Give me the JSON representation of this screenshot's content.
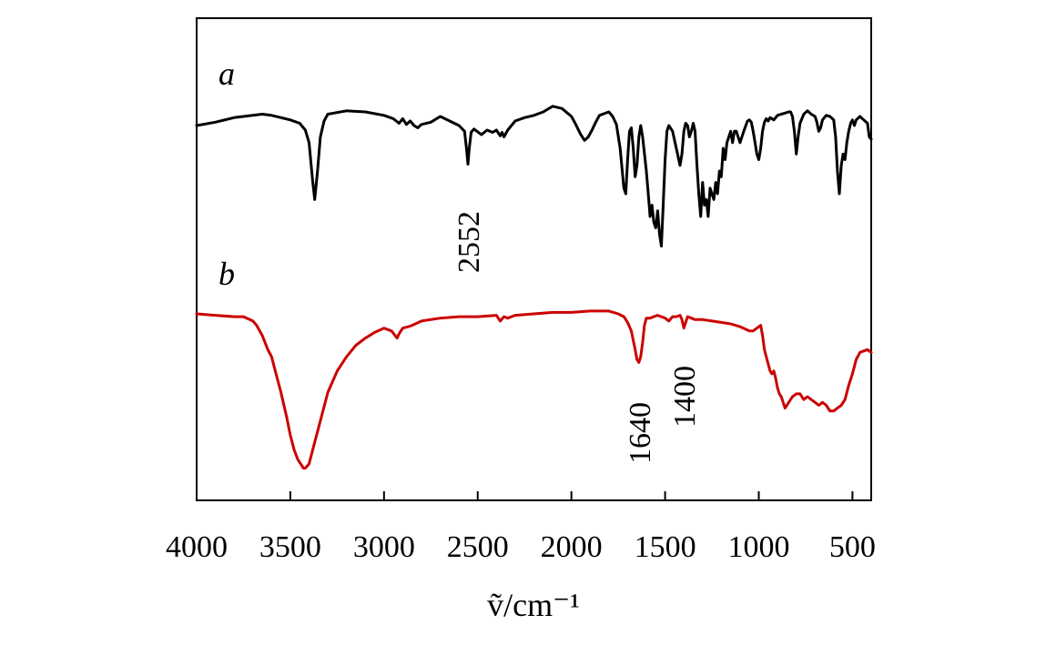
{
  "chart_data": {
    "type": "line",
    "title": "",
    "xlabel": "ṽ/cm⁻¹",
    "ylabel": "",
    "xlim": [
      4000,
      400
    ],
    "x_reversed": true,
    "y_tick_labels": false,
    "xticks": [
      4000,
      3500,
      3000,
      2500,
      2000,
      1500,
      1000,
      500
    ],
    "grid": false,
    "legend": "none",
    "series": [
      {
        "name": "a",
        "color": "#000000",
        "x": [
          4000,
          3900,
          3800,
          3700,
          3650,
          3600,
          3500,
          3450,
          3420,
          3400,
          3380,
          3370,
          3355,
          3340,
          3320,
          3300,
          3200,
          3100,
          3000,
          2950,
          2920,
          2900,
          2880,
          2860,
          2840,
          2820,
          2800,
          2750,
          2700,
          2650,
          2600,
          2570,
          2560,
          2552,
          2545,
          2535,
          2520,
          2480,
          2450,
          2420,
          2400,
          2380,
          2370,
          2360,
          2340,
          2300,
          2250,
          2200,
          2150,
          2130,
          2100,
          2050,
          2000,
          1980,
          1950,
          1930,
          1910,
          1890,
          1870,
          1850,
          1800,
          1780,
          1760,
          1740,
          1720,
          1710,
          1700,
          1690,
          1680,
          1670,
          1660,
          1650,
          1640,
          1630,
          1620,
          1600,
          1590,
          1580,
          1570,
          1560,
          1550,
          1540,
          1530,
          1520,
          1510,
          1500,
          1490,
          1480,
          1460,
          1440,
          1420,
          1410,
          1400,
          1390,
          1380,
          1370,
          1360,
          1350,
          1340,
          1330,
          1320,
          1310,
          1300,
          1290,
          1280,
          1270,
          1260,
          1250,
          1240,
          1230,
          1220,
          1210,
          1200,
          1190,
          1180,
          1170,
          1160,
          1150,
          1140,
          1130,
          1120,
          1100,
          1080,
          1060,
          1050,
          1040,
          1030,
          1020,
          1010,
          1000,
          990,
          980,
          970,
          960,
          950,
          940,
          920,
          900,
          880,
          860,
          840,
          830,
          820,
          810,
          800,
          790,
          780,
          760,
          740,
          720,
          700,
          690,
          680,
          670,
          660,
          640,
          620,
          600,
          590,
          580,
          570,
          560,
          550,
          540,
          530,
          520,
          510,
          500,
          490,
          480,
          460,
          440,
          420,
          410,
          400
        ],
        "y": [
          0.0,
          0.03,
          0.07,
          0.09,
          0.1,
          0.09,
          0.05,
          0.02,
          -0.04,
          -0.15,
          -0.5,
          -0.65,
          -0.4,
          -0.1,
          0.04,
          0.1,
          0.13,
          0.12,
          0.09,
          0.06,
          0.02,
          0.06,
          0.01,
          0.04,
          0.0,
          -0.02,
          0.01,
          0.03,
          0.08,
          0.04,
          0.0,
          -0.05,
          -0.2,
          -0.34,
          -0.2,
          -0.06,
          -0.03,
          -0.08,
          -0.04,
          -0.06,
          -0.04,
          -0.09,
          -0.06,
          -0.1,
          -0.04,
          0.04,
          0.07,
          0.09,
          0.12,
          0.14,
          0.17,
          0.15,
          0.08,
          0.02,
          -0.08,
          -0.13,
          -0.1,
          -0.04,
          0.03,
          0.09,
          0.12,
          0.08,
          0.01,
          -0.2,
          -0.55,
          -0.6,
          -0.3,
          -0.05,
          -0.02,
          -0.2,
          -0.45,
          -0.35,
          -0.1,
          0.0,
          -0.1,
          -0.4,
          -0.6,
          -0.8,
          -0.7,
          -0.85,
          -0.9,
          -0.75,
          -0.95,
          -1.06,
          -0.7,
          -0.3,
          -0.05,
          0.0,
          -0.05,
          -0.2,
          -0.35,
          -0.25,
          -0.05,
          0.02,
          0.0,
          -0.1,
          -0.05,
          0.02,
          -0.05,
          -0.35,
          -0.6,
          -0.8,
          -0.5,
          -0.7,
          -0.65,
          -0.8,
          -0.55,
          -0.6,
          -0.65,
          -0.5,
          -0.6,
          -0.4,
          -0.45,
          -0.2,
          -0.3,
          -0.15,
          -0.1,
          -0.05,
          -0.15,
          -0.05,
          -0.05,
          -0.15,
          -0.05,
          0.04,
          0.05,
          0.03,
          -0.05,
          -0.15,
          -0.25,
          -0.3,
          -0.2,
          -0.05,
          0.03,
          0.06,
          0.04,
          0.07,
          0.05,
          0.09,
          0.1,
          0.11,
          0.12,
          0.12,
          0.08,
          -0.05,
          -0.25,
          -0.1,
          0.02,
          0.1,
          0.13,
          0.1,
          0.08,
          0.03,
          -0.05,
          -0.02,
          0.05,
          0.09,
          0.08,
          0.05,
          -0.1,
          -0.4,
          -0.6,
          -0.35,
          -0.25,
          -0.3,
          -0.15,
          -0.05,
          0.02,
          0.05,
          0.0,
          0.05,
          0.08,
          0.05,
          0.02,
          -0.1,
          -0.12
        ]
      },
      {
        "name": "b",
        "color": "#cc0000",
        "x": [
          4000,
          3900,
          3800,
          3750,
          3700,
          3680,
          3650,
          3620,
          3600,
          3580,
          3550,
          3520,
          3500,
          3480,
          3460,
          3440,
          3430,
          3420,
          3400,
          3380,
          3350,
          3300,
          3250,
          3200,
          3150,
          3100,
          3050,
          3000,
          2960,
          2930,
          2920,
          2900,
          2870,
          2850,
          2800,
          2700,
          2600,
          2500,
          2400,
          2380,
          2360,
          2340,
          2300,
          2200,
          2100,
          2000,
          1900,
          1800,
          1750,
          1720,
          1700,
          1680,
          1660,
          1650,
          1640,
          1630,
          1620,
          1610,
          1600,
          1580,
          1560,
          1540,
          1520,
          1500,
          1480,
          1460,
          1440,
          1420,
          1410,
          1400,
          1390,
          1380,
          1360,
          1340,
          1300,
          1250,
          1200,
          1150,
          1100,
          1050,
          1030,
          1010,
          990,
          980,
          970,
          960,
          950,
          940,
          930,
          920,
          910,
          900,
          890,
          880,
          870,
          860,
          850,
          840,
          820,
          800,
          780,
          760,
          740,
          720,
          700,
          680,
          660,
          640,
          620,
          600,
          580,
          560,
          540,
          520,
          500,
          480,
          460,
          440,
          420,
          400
        ],
        "y": [
          0.0,
          -0.01,
          -0.02,
          -0.02,
          -0.05,
          -0.08,
          -0.15,
          -0.25,
          -0.3,
          -0.4,
          -0.55,
          -0.72,
          -0.85,
          -0.95,
          -1.02,
          -1.06,
          -1.08,
          -1.08,
          -1.05,
          -0.95,
          -0.8,
          -0.55,
          -0.4,
          -0.3,
          -0.22,
          -0.17,
          -0.13,
          -0.1,
          -0.12,
          -0.17,
          -0.14,
          -0.1,
          -0.09,
          -0.08,
          -0.05,
          -0.03,
          -0.02,
          -0.02,
          -0.01,
          -0.05,
          -0.02,
          -0.03,
          -0.01,
          0.0,
          0.01,
          0.01,
          0.02,
          0.02,
          0.0,
          -0.02,
          -0.06,
          -0.12,
          -0.25,
          -0.32,
          -0.34,
          -0.3,
          -0.2,
          -0.08,
          -0.03,
          -0.03,
          -0.02,
          -0.01,
          -0.02,
          -0.03,
          -0.05,
          -0.02,
          -0.02,
          -0.01,
          -0.04,
          -0.1,
          -0.06,
          -0.02,
          -0.03,
          -0.04,
          -0.04,
          -0.05,
          -0.06,
          -0.07,
          -0.09,
          -0.12,
          -0.12,
          -0.1,
          -0.08,
          -0.15,
          -0.25,
          -0.3,
          -0.35,
          -0.4,
          -0.42,
          -0.4,
          -0.45,
          -0.52,
          -0.56,
          -0.58,
          -0.62,
          -0.66,
          -0.64,
          -0.62,
          -0.58,
          -0.56,
          -0.56,
          -0.6,
          -0.58,
          -0.6,
          -0.62,
          -0.64,
          -0.62,
          -0.64,
          -0.68,
          -0.68,
          -0.66,
          -0.64,
          -0.6,
          -0.5,
          -0.42,
          -0.32,
          -0.27,
          -0.26,
          -0.25,
          -0.27
        ]
      }
    ],
    "series_labels": [
      {
        "text": "a",
        "x": 3850,
        "series": "a"
      },
      {
        "text": "b",
        "x": 3850,
        "series": "b"
      }
    ],
    "annotations": [
      {
        "text": "2552",
        "x": 2552,
        "series": "a",
        "orientation": "vertical"
      },
      {
        "text": "1640",
        "x": 1640,
        "series": "b",
        "orientation": "vertical"
      },
      {
        "text": "1400",
        "x": 1400,
        "series": "b",
        "orientation": "vertical"
      }
    ]
  }
}
